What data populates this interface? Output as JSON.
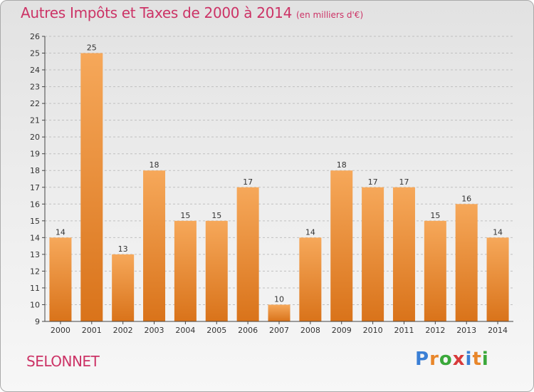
{
  "title": "Autres Impôts et Taxes de 2000 à 2014",
  "subtitle": "(en milliers d'€)",
  "commune": "SELONNET",
  "logo": {
    "text": "Proxiti",
    "letter_colors": [
      "#3a7fd5",
      "#e8862a",
      "#3aa83a",
      "#d83a3a",
      "#3a7fd5",
      "#e8862a",
      "#3aa83a"
    ]
  },
  "colors": {
    "title": "#cc3366",
    "bar_top": "#f6a85a",
    "bar_bottom": "#d9731a",
    "grid": "#c0c0c0",
    "axis": "#444444"
  },
  "chart_data": {
    "type": "bar",
    "categories": [
      "2000",
      "2001",
      "2002",
      "2003",
      "2004",
      "2005",
      "2006",
      "2007",
      "2008",
      "2009",
      "2010",
      "2011",
      "2012",
      "2013",
      "2014"
    ],
    "values": [
      14,
      25,
      13,
      18,
      15,
      15,
      17,
      10,
      14,
      18,
      17,
      17,
      15,
      16,
      14
    ],
    "ylim": [
      9,
      26
    ],
    "yticks": [
      9,
      10,
      11,
      12,
      13,
      14,
      15,
      16,
      17,
      18,
      19,
      20,
      21,
      22,
      23,
      24,
      25,
      26
    ],
    "grid": true
  }
}
